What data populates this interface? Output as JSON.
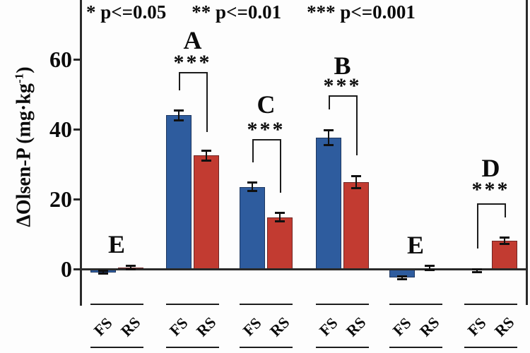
{
  "legend": {
    "items": [
      "* p<=0.05",
      "** p<=0.01",
      "*** p<=0.001"
    ]
  },
  "y_axis": {
    "label_main": "ΔOlsen-P (mg·kg",
    "label_sup": "-1",
    "label_end": ")"
  },
  "x_axis": {
    "series_labels": [
      "FS",
      "RS"
    ]
  },
  "chart_data": {
    "type": "bar",
    "title": "",
    "xlabel": "",
    "ylabel": "ΔOlsen-P (mg·kg-1)",
    "ylim": [
      -10.5,
      77
    ],
    "yticks": [
      0,
      20,
      40,
      60
    ],
    "grid": false,
    "legend_note": "* p<=0.05   ** p<=0.01   *** p<=0.001",
    "series_names": [
      "FS",
      "RS"
    ],
    "colors": {
      "FS": "#2e5c9e",
      "RS": "#c23b31"
    },
    "groups": [
      {
        "letter": "E",
        "significance": null,
        "bars": [
          {
            "series": "FS",
            "value": -1.0,
            "error": 0.5
          },
          {
            "series": "RS",
            "value": 0.4,
            "error": 0.6
          }
        ]
      },
      {
        "letter": "A",
        "significance": "***",
        "bars": [
          {
            "series": "FS",
            "value": 44.0,
            "error": 1.5
          },
          {
            "series": "RS",
            "value": 32.5,
            "error": 1.5
          }
        ]
      },
      {
        "letter": "C",
        "significance": "***",
        "bars": [
          {
            "series": "FS",
            "value": 23.5,
            "error": 1.3
          },
          {
            "series": "RS",
            "value": 14.8,
            "error": 1.3
          }
        ]
      },
      {
        "letter": "B",
        "significance": "***",
        "bars": [
          {
            "series": "FS",
            "value": 37.5,
            "error": 2.2
          },
          {
            "series": "RS",
            "value": 24.8,
            "error": 1.8
          }
        ]
      },
      {
        "letter": "E",
        "significance": null,
        "bars": [
          {
            "series": "FS",
            "value": -2.5,
            "error": 0.5
          },
          {
            "series": "RS",
            "value": 0.3,
            "error": 0.8
          }
        ]
      },
      {
        "letter": "D",
        "significance": "***",
        "bars": [
          {
            "series": "FS",
            "value": -0.5,
            "error": 0.5
          },
          {
            "series": "RS",
            "value": 8.0,
            "error": 1.0
          }
        ]
      }
    ]
  }
}
